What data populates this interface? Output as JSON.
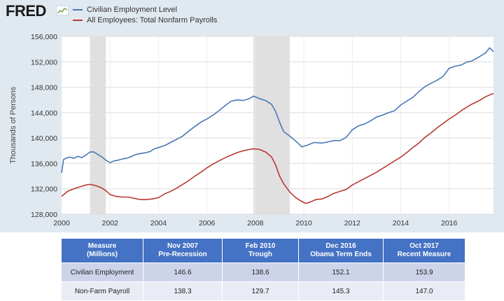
{
  "header": {
    "logo_text": "FRED"
  },
  "chart_data": {
    "type": "line",
    "ylabel": "Thousands of Persons",
    "xlabel": "",
    "ylim": [
      128000,
      156000
    ],
    "xlim": [
      2000,
      2017.83
    ],
    "x_ticks": [
      "2000",
      "2002",
      "2004",
      "2006",
      "2008",
      "2010",
      "2012",
      "2014",
      "2016"
    ],
    "y_ticks": [
      "128,000",
      "132,000",
      "136,000",
      "140,000",
      "144,000",
      "148,000",
      "152,000",
      "156,000"
    ],
    "grid": true,
    "legend_position": "top-left",
    "recessions": [
      [
        2001.17,
        2001.83
      ],
      [
        2007.92,
        2009.42
      ]
    ],
    "series": [
      {
        "name": "Civilian Employment Level",
        "color": "#4a78b5",
        "points": [
          [
            2000.0,
            134.5
          ],
          [
            2000.08,
            136.6
          ],
          [
            2000.17,
            136.8
          ],
          [
            2000.33,
            137.0
          ],
          [
            2000.5,
            136.8
          ],
          [
            2000.67,
            137.1
          ],
          [
            2000.83,
            136.9
          ],
          [
            2001.0,
            137.3
          ],
          [
            2001.17,
            137.8
          ],
          [
            2001.33,
            137.8
          ],
          [
            2001.5,
            137.4
          ],
          [
            2001.67,
            137.0
          ],
          [
            2001.83,
            136.5
          ],
          [
            2002.0,
            136.1
          ],
          [
            2002.17,
            136.4
          ],
          [
            2002.33,
            136.5
          ],
          [
            2002.5,
            136.7
          ],
          [
            2002.67,
            136.8
          ],
          [
            2002.83,
            137.0
          ],
          [
            2003.0,
            137.3
          ],
          [
            2003.17,
            137.5
          ],
          [
            2003.33,
            137.6
          ],
          [
            2003.5,
            137.7
          ],
          [
            2003.67,
            137.9
          ],
          [
            2003.83,
            138.3
          ],
          [
            2004.0,
            138.5
          ],
          [
            2004.25,
            138.8
          ],
          [
            2004.5,
            139.3
          ],
          [
            2004.75,
            139.8
          ],
          [
            2005.0,
            140.3
          ],
          [
            2005.25,
            141.1
          ],
          [
            2005.5,
            141.8
          ],
          [
            2005.75,
            142.5
          ],
          [
            2006.0,
            143.0
          ],
          [
            2006.25,
            143.6
          ],
          [
            2006.5,
            144.3
          ],
          [
            2006.75,
            145.1
          ],
          [
            2007.0,
            145.8
          ],
          [
            2007.25,
            146.0
          ],
          [
            2007.5,
            145.9
          ],
          [
            2007.75,
            146.2
          ],
          [
            2007.92,
            146.6
          ],
          [
            2008.17,
            146.2
          ],
          [
            2008.42,
            145.9
          ],
          [
            2008.67,
            145.3
          ],
          [
            2008.83,
            144.2
          ],
          [
            2009.0,
            142.5
          ],
          [
            2009.17,
            141.0
          ],
          [
            2009.42,
            140.3
          ],
          [
            2009.67,
            139.5
          ],
          [
            2009.92,
            138.6
          ],
          [
            2010.17,
            138.9
          ],
          [
            2010.42,
            139.3
          ],
          [
            2010.75,
            139.2
          ],
          [
            2011.0,
            139.4
          ],
          [
            2011.25,
            139.6
          ],
          [
            2011.5,
            139.6
          ],
          [
            2011.75,
            140.1
          ],
          [
            2012.0,
            141.3
          ],
          [
            2012.25,
            141.9
          ],
          [
            2012.5,
            142.2
          ],
          [
            2012.75,
            142.7
          ],
          [
            2013.0,
            143.3
          ],
          [
            2013.25,
            143.6
          ],
          [
            2013.5,
            144.0
          ],
          [
            2013.75,
            144.3
          ],
          [
            2014.0,
            145.2
          ],
          [
            2014.25,
            145.8
          ],
          [
            2014.5,
            146.4
          ],
          [
            2014.75,
            147.3
          ],
          [
            2015.0,
            148.1
          ],
          [
            2015.25,
            148.6
          ],
          [
            2015.5,
            149.1
          ],
          [
            2015.75,
            149.7
          ],
          [
            2016.0,
            151.0
          ],
          [
            2016.25,
            151.3
          ],
          [
            2016.5,
            151.5
          ],
          [
            2016.75,
            152.0
          ],
          [
            2016.92,
            152.1
          ],
          [
            2017.25,
            152.8
          ],
          [
            2017.5,
            153.4
          ],
          [
            2017.67,
            154.2
          ],
          [
            2017.75,
            153.9
          ],
          [
            2017.83,
            153.6
          ]
        ]
      },
      {
        "name": "All Employees: Total Nonfarm Payrolls",
        "color": "#b83a33",
        "points": [
          [
            2000.0,
            130.8
          ],
          [
            2000.25,
            131.6
          ],
          [
            2000.5,
            132.0
          ],
          [
            2000.75,
            132.3
          ],
          [
            2001.0,
            132.6
          ],
          [
            2001.17,
            132.7
          ],
          [
            2001.42,
            132.5
          ],
          [
            2001.67,
            132.1
          ],
          [
            2001.83,
            131.7
          ],
          [
            2002.0,
            131.1
          ],
          [
            2002.25,
            130.8
          ],
          [
            2002.5,
            130.7
          ],
          [
            2002.75,
            130.7
          ],
          [
            2003.0,
            130.5
          ],
          [
            2003.25,
            130.3
          ],
          [
            2003.5,
            130.3
          ],
          [
            2003.75,
            130.4
          ],
          [
            2004.0,
            130.6
          ],
          [
            2004.25,
            131.2
          ],
          [
            2004.5,
            131.6
          ],
          [
            2004.75,
            132.1
          ],
          [
            2005.0,
            132.7
          ],
          [
            2005.25,
            133.3
          ],
          [
            2005.5,
            134.0
          ],
          [
            2005.75,
            134.6
          ],
          [
            2006.0,
            135.3
          ],
          [
            2006.25,
            135.9
          ],
          [
            2006.5,
            136.4
          ],
          [
            2006.75,
            136.9
          ],
          [
            2007.0,
            137.3
          ],
          [
            2007.25,
            137.7
          ],
          [
            2007.5,
            138.0
          ],
          [
            2007.75,
            138.2
          ],
          [
            2007.92,
            138.3
          ],
          [
            2008.17,
            138.2
          ],
          [
            2008.42,
            137.8
          ],
          [
            2008.67,
            137.0
          ],
          [
            2008.83,
            135.8
          ],
          [
            2009.0,
            134.0
          ],
          [
            2009.17,
            132.8
          ],
          [
            2009.42,
            131.5
          ],
          [
            2009.67,
            130.6
          ],
          [
            2009.92,
            130.0
          ],
          [
            2010.08,
            129.7
          ],
          [
            2010.25,
            129.9
          ],
          [
            2010.5,
            130.3
          ],
          [
            2010.75,
            130.4
          ],
          [
            2011.0,
            130.8
          ],
          [
            2011.25,
            131.3
          ],
          [
            2011.5,
            131.6
          ],
          [
            2011.75,
            131.9
          ],
          [
            2012.0,
            132.6
          ],
          [
            2012.25,
            133.1
          ],
          [
            2012.5,
            133.6
          ],
          [
            2012.75,
            134.1
          ],
          [
            2013.0,
            134.6
          ],
          [
            2013.25,
            135.2
          ],
          [
            2013.5,
            135.8
          ],
          [
            2013.75,
            136.4
          ],
          [
            2014.0,
            137.0
          ],
          [
            2014.25,
            137.7
          ],
          [
            2014.5,
            138.5
          ],
          [
            2014.75,
            139.2
          ],
          [
            2015.0,
            140.1
          ],
          [
            2015.25,
            140.8
          ],
          [
            2015.5,
            141.6
          ],
          [
            2015.75,
            142.3
          ],
          [
            2016.0,
            143.0
          ],
          [
            2016.25,
            143.6
          ],
          [
            2016.5,
            144.3
          ],
          [
            2016.75,
            144.9
          ],
          [
            2016.92,
            145.3
          ],
          [
            2017.25,
            145.9
          ],
          [
            2017.5,
            146.5
          ],
          [
            2017.75,
            146.9
          ],
          [
            2017.83,
            147.0
          ]
        ]
      }
    ]
  },
  "table": {
    "headers": [
      {
        "line1": "Measure",
        "line2": "(Millions)"
      },
      {
        "line1": "Nov 2007",
        "line2": "Pre-Recession"
      },
      {
        "line1": "Feb 2010",
        "line2": "Trough"
      },
      {
        "line1": "Dec 2016",
        "line2": "Obama Term Ends"
      },
      {
        "line1": "Oct 2017",
        "line2": "Recent Measure"
      }
    ],
    "rows": [
      {
        "measure": "Civilian Employment",
        "values": [
          "146.6",
          "138.6",
          "152.1",
          "153.9"
        ]
      },
      {
        "measure": "Non-Farm Payroll",
        "values": [
          "138.3",
          "129.7",
          "145.3",
          "147.0"
        ]
      }
    ]
  }
}
